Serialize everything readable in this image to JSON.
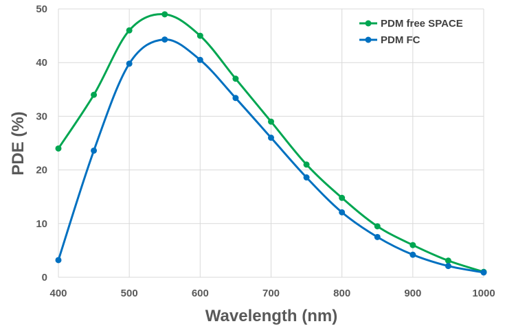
{
  "chart_data": {
    "type": "line",
    "title": "",
    "xlabel": "Wavelength (nm)",
    "ylabel": "PDE (%)",
    "xlim": [
      400,
      1000
    ],
    "ylim": [
      0,
      50
    ],
    "x_ticks": [
      400,
      500,
      600,
      700,
      800,
      900,
      1000
    ],
    "y_ticks": [
      0,
      10,
      20,
      30,
      40,
      50
    ],
    "grid": true,
    "legend_position": "top-right",
    "smooth": true,
    "series": [
      {
        "name": "PDM free SPACE",
        "color": "#00a651",
        "x": [
          400,
          450,
          500,
          550,
          600,
          650,
          700,
          750,
          800,
          850,
          900,
          950,
          1000
        ],
        "y": [
          24,
          34,
          46,
          49,
          45,
          37,
          29,
          21,
          14.8,
          9.5,
          6,
          3.1,
          1
        ]
      },
      {
        "name": "PDM FC",
        "color": "#0070c0",
        "x": [
          400,
          450,
          500,
          550,
          600,
          650,
          700,
          750,
          800,
          850,
          900,
          950,
          1000
        ],
        "y": [
          3.2,
          23.6,
          39.8,
          44.3,
          40.5,
          33.4,
          26,
          18.6,
          12.1,
          7.5,
          4.2,
          2.1,
          0.9
        ]
      }
    ]
  }
}
